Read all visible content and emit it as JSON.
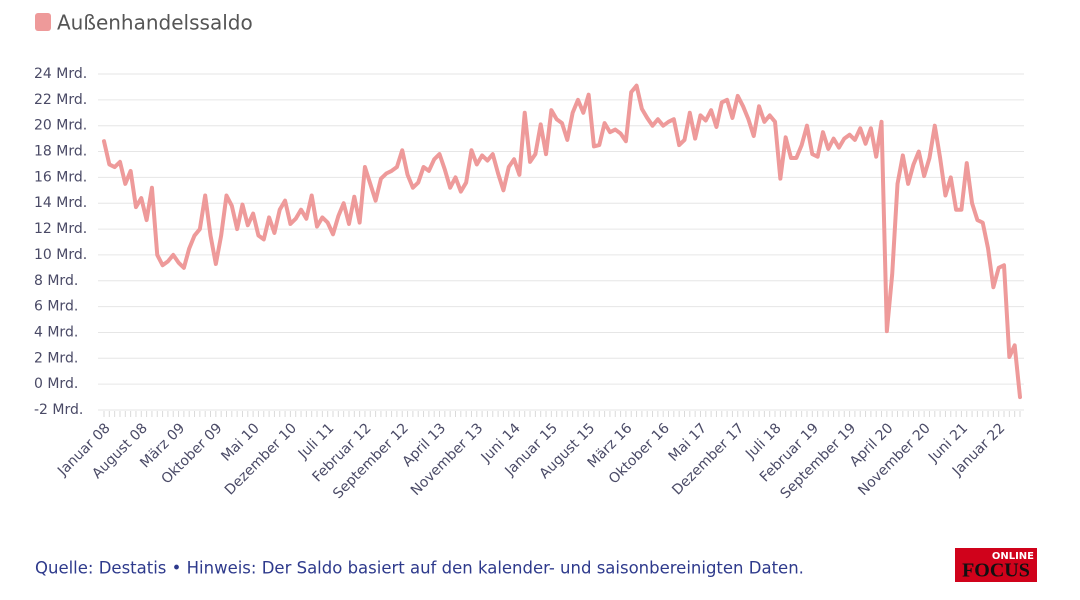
{
  "chart_data": {
    "type": "line",
    "series": [
      {
        "name": "Außenhandelssaldo",
        "color": "#ee9a9a",
        "values": [
          18.8,
          17,
          16.8,
          17.2,
          15.5,
          16.5,
          13.7,
          14.4,
          12.7,
          15.2,
          10,
          9.2,
          9.5,
          10,
          9.4,
          9,
          10.5,
          11.5,
          12,
          14.6,
          11.5,
          9.3,
          11.5,
          14.6,
          13.8,
          12,
          13.9,
          12.3,
          13.2,
          11.5,
          11.2,
          12.9,
          11.7,
          13.5,
          14.2,
          12.4,
          12.8,
          13.5,
          12.8,
          14.6,
          12.2,
          12.9,
          12.5,
          11.6,
          13,
          14,
          12.4,
          14.5,
          12.5,
          16.8,
          15.5,
          14.2,
          15.9,
          16.3,
          16.5,
          16.8,
          18.1,
          16.2,
          15.2,
          15.6,
          16.8,
          16.5,
          17.4,
          17.8,
          16.6,
          15.2,
          16,
          14.9,
          15.6,
          18.1,
          17,
          17.7,
          17.3,
          17.8,
          16.3,
          15,
          16.8,
          17.4,
          16.2,
          21,
          17.2,
          17.8,
          20.1,
          17.8,
          21.2,
          20.5,
          20.2,
          18.9,
          21,
          22,
          21,
          22.4,
          18.4,
          18.5,
          20.2,
          19.5,
          19.7,
          19.4,
          18.8,
          22.6,
          23.1,
          21.3,
          20.6,
          20,
          20.5,
          20,
          20.3,
          20.5,
          18.5,
          18.9,
          21,
          19,
          20.8,
          20.4,
          21.2,
          19.9,
          21.8,
          22,
          20.6,
          22.3,
          21.5,
          20.5,
          19.2,
          21.5,
          20.3,
          20.8,
          20.3,
          15.9,
          19.1,
          17.5,
          17.5,
          18.5,
          20,
          17.8,
          17.6,
          19.5,
          18.2,
          19,
          18.3,
          19,
          19.3,
          18.9,
          19.8,
          18.6,
          19.8,
          17.6,
          20.3,
          4.1,
          8.5,
          15.5,
          17.7,
          15.5,
          17,
          18,
          16.1,
          17.5,
          20,
          17.5,
          14.6,
          16,
          13.5,
          13.5,
          17.1,
          14,
          12.7,
          12.5,
          10.5,
          7.5,
          9,
          9.2,
          2.1,
          3,
          -1
        ]
      }
    ],
    "categories": [
      "Januar 08",
      null,
      null,
      null,
      null,
      null,
      null,
      "August 08",
      null,
      null,
      null,
      null,
      null,
      null,
      "März 09",
      null,
      null,
      null,
      null,
      null,
      null,
      "Oktober 09",
      null,
      null,
      null,
      null,
      null,
      null,
      "Mai 10",
      null,
      null,
      null,
      null,
      null,
      null,
      "Dezember 10",
      null,
      null,
      null,
      null,
      null,
      null,
      "Juli 11",
      null,
      null,
      null,
      null,
      null,
      null,
      "Februar 12",
      null,
      null,
      null,
      null,
      null,
      null,
      "September 12",
      null,
      null,
      null,
      null,
      null,
      null,
      "April 13",
      null,
      null,
      null,
      null,
      null,
      null,
      "November 13",
      null,
      null,
      null,
      null,
      null,
      null,
      "Juni 14",
      null,
      null,
      null,
      null,
      null,
      null,
      "Januar 15",
      null,
      null,
      null,
      null,
      null,
      null,
      "August 15",
      null,
      null,
      null,
      null,
      null,
      null,
      "März 16",
      null,
      null,
      null,
      null,
      null,
      null,
      "Oktober 16",
      null,
      null,
      null,
      null,
      null,
      null,
      "Mai 17",
      null,
      null,
      null,
      null,
      null,
      null,
      "Dezember 17",
      null,
      null,
      null,
      null,
      null,
      null,
      "Juli 18",
      null,
      null,
      null,
      null,
      null,
      null,
      "Februar 19",
      null,
      null,
      null,
      null,
      null,
      null,
      "September 19",
      null,
      null,
      null,
      null,
      null,
      null,
      "April 20",
      null,
      null,
      null,
      null,
      null,
      null,
      "November 20",
      null,
      null,
      null,
      null,
      null,
      null,
      "Juni 21",
      null,
      null,
      null,
      null,
      null,
      null,
      "Januar 22",
      null,
      null,
      null,
      null
    ],
    "ylim": [
      -2,
      24
    ],
    "yticks": [
      {
        "value": -2,
        "label": "-2 Mrd."
      },
      {
        "value": 0,
        "label": "0 Mrd."
      },
      {
        "value": 2,
        "label": "2 Mrd."
      },
      {
        "value": 4,
        "label": "4 Mrd."
      },
      {
        "value": 6,
        "label": "6 Mrd."
      },
      {
        "value": 8,
        "label": "8 Mrd."
      },
      {
        "value": 10,
        "label": "10 Mrd."
      },
      {
        "value": 12,
        "label": "12 Mrd."
      },
      {
        "value": 14,
        "label": "14 Mrd."
      },
      {
        "value": 16,
        "label": "16 Mrd."
      },
      {
        "value": 18,
        "label": "18 Mrd."
      },
      {
        "value": 20,
        "label": "20 Mrd."
      },
      {
        "value": 22,
        "label": "22 Mrd."
      },
      {
        "value": 24,
        "label": "24 Mrd."
      }
    ],
    "grid": true
  },
  "footer": {
    "source": "Quelle: Destatis • Hinweis: Der Saldo basiert auf den kalender- und saisonbereinigten Daten.",
    "logo_top": "ONLINE",
    "logo_main": "FOCUS"
  }
}
